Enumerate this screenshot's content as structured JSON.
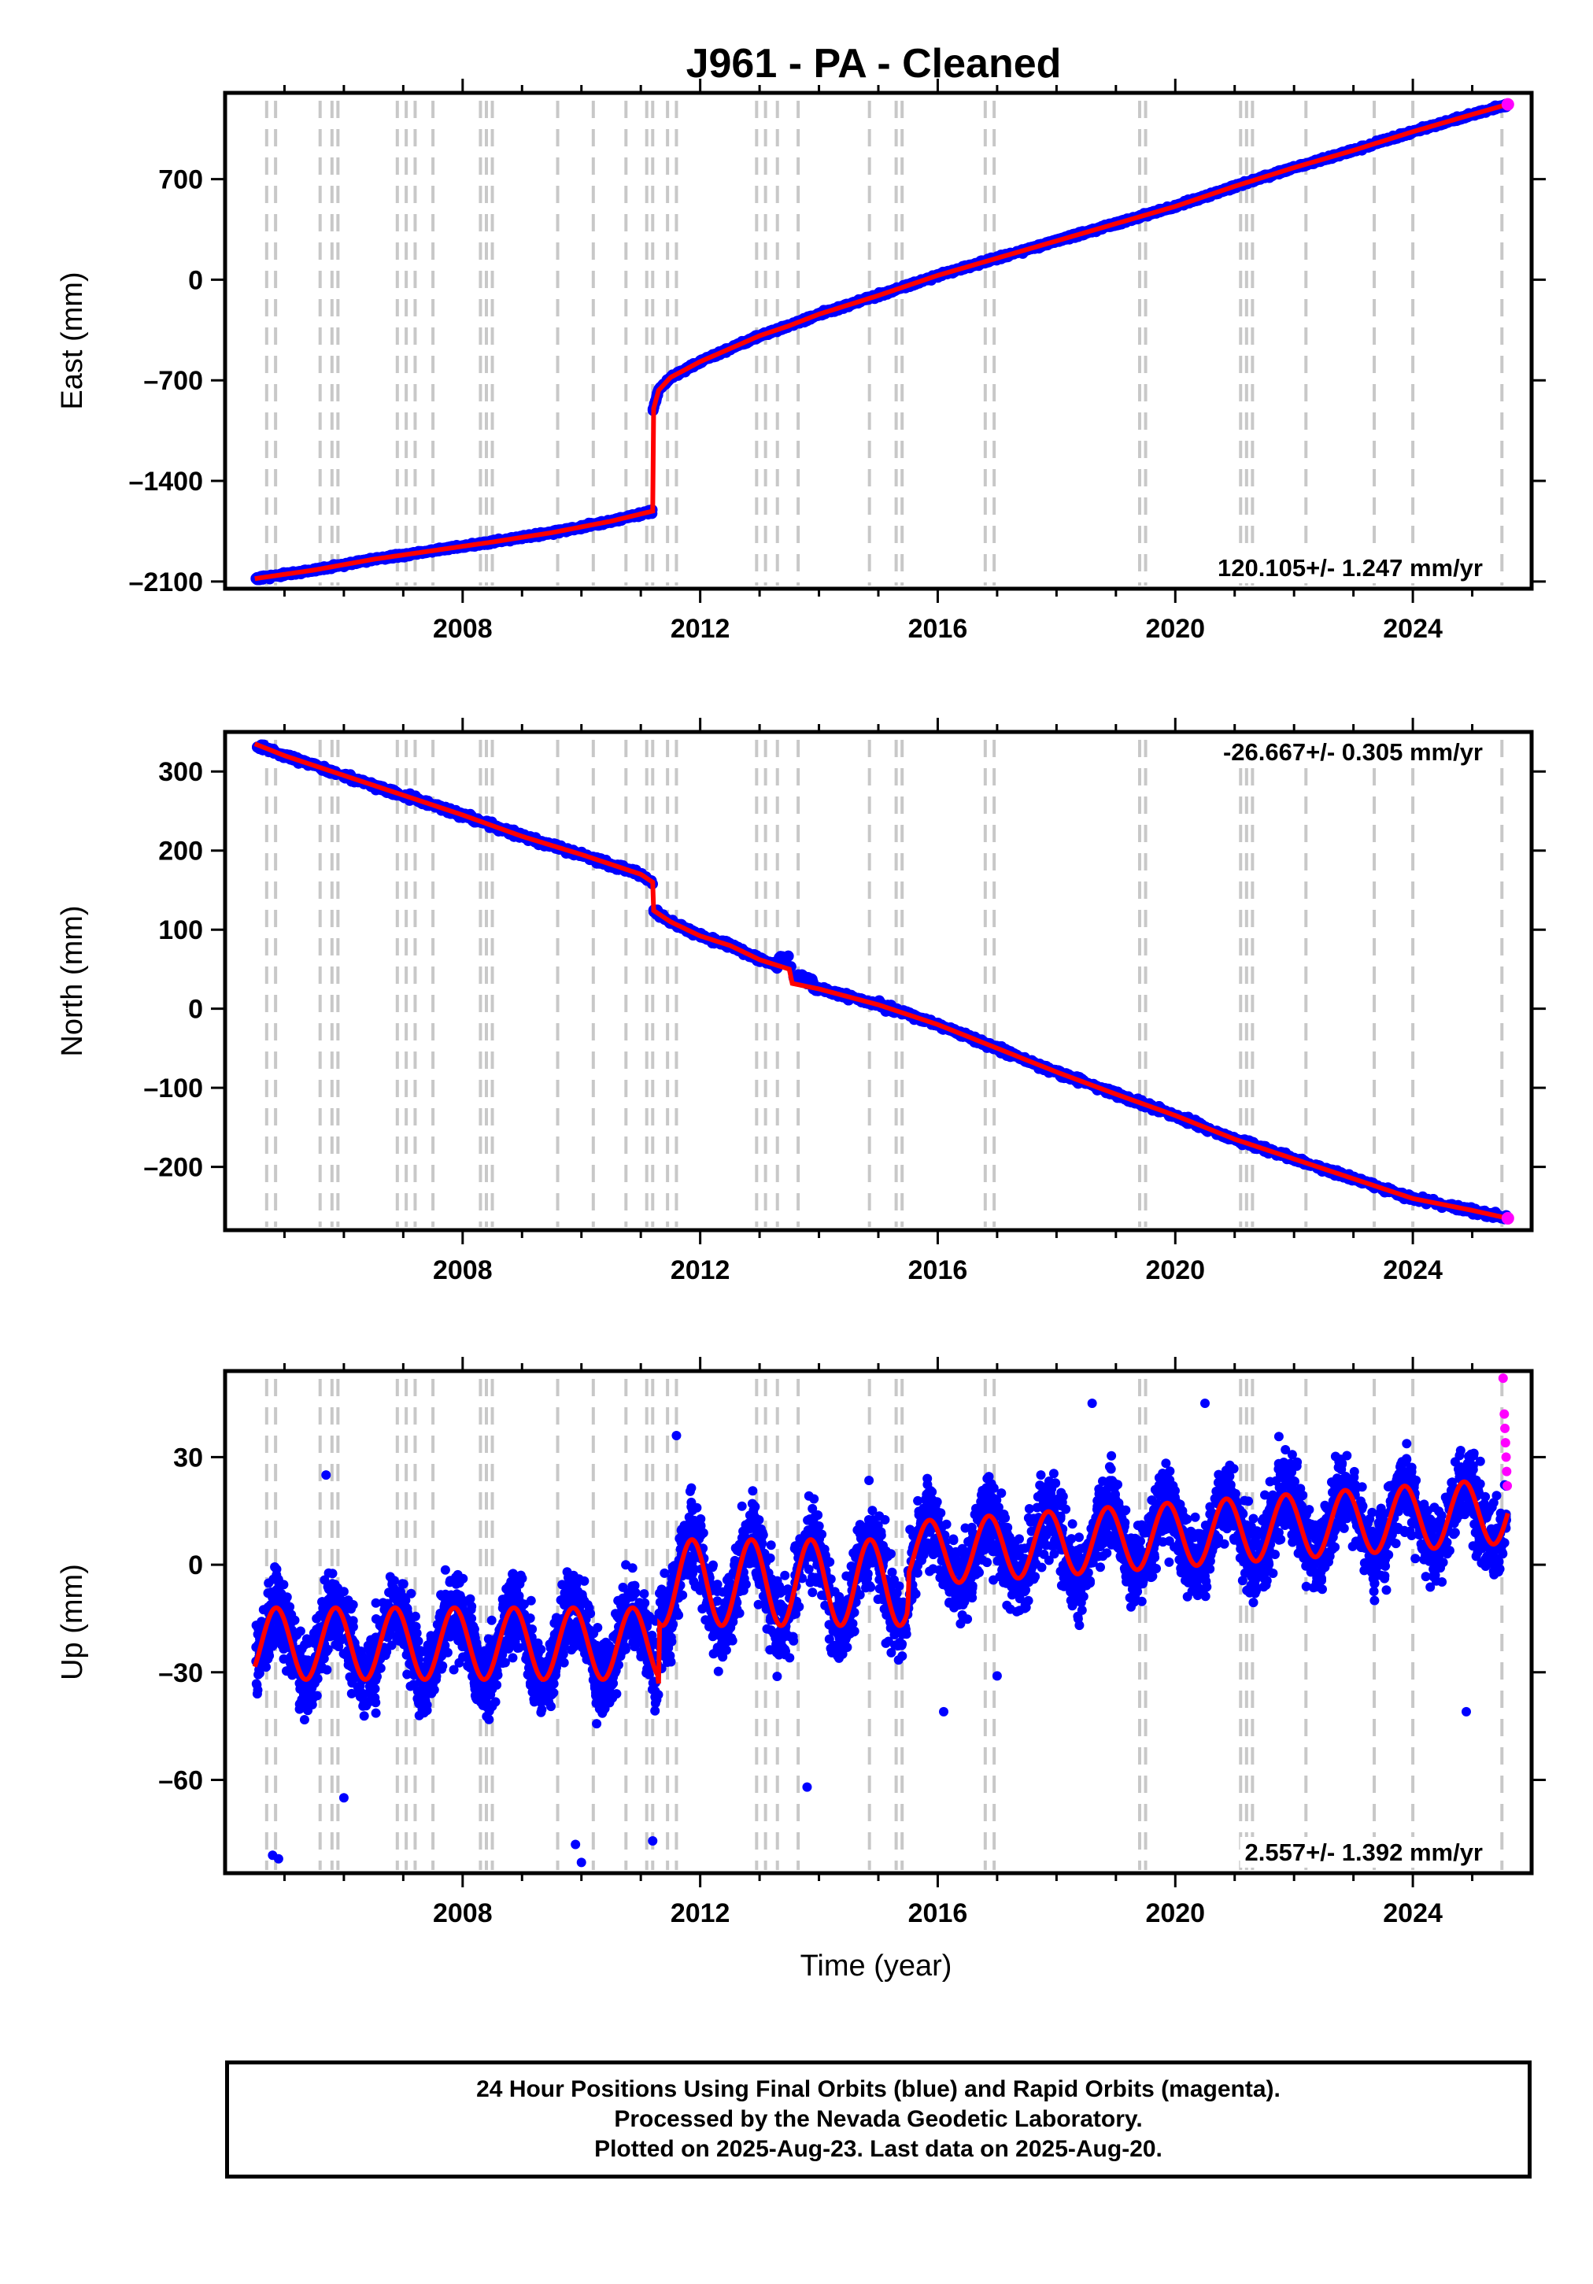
{
  "title": "J961  - PA - Cleaned",
  "xlabel": "Time (year)",
  "footer": {
    "line1": "24 Hour Positions Using Final Orbits (blue) and Rapid Orbits (magenta).",
    "line2": "Processed by the Nevada Geodetic Laboratory.",
    "line3": "Plotted on 2025-Aug-23. Last data on 2025-Aug-20."
  },
  "colors": {
    "final": "#0000ff",
    "rapid": "#ff00ff",
    "model": "#ff0000",
    "steps": "#c8c8c8"
  },
  "chart_data": [
    {
      "type": "scatter",
      "name": "east",
      "ylabel": "East (mm)",
      "rate": "120.105+/- 1.247 mm/yr",
      "xlim": [
        2004.0,
        2026.0
      ],
      "ylim": [
        -2150,
        1300
      ],
      "xticks": [
        2008,
        2012,
        2016,
        2020,
        2024
      ],
      "yticks": [
        -2100,
        -1400,
        -700,
        0,
        700
      ],
      "ytick_labels": [
        "–2100",
        "–1400",
        "–700",
        "0",
        "700"
      ],
      "series": [
        {
          "x": [
            2004.5,
            2005.5,
            2006.5,
            2007.5,
            2008.5,
            2009.5,
            2010.5,
            2011.2
          ],
          "y": [
            -2080,
            -2020,
            -1945,
            -1885,
            -1825,
            -1760,
            -1680,
            -1610
          ]
        },
        {
          "x": [
            2011.2,
            2011.3,
            2011.5,
            2012.0,
            2012.5,
            2013.0,
            2013.5,
            2014.0,
            2014.5,
            2015.0,
            2015.5,
            2016.0,
            2017.0,
            2018.0,
            2019.0,
            2020.0,
            2021.0,
            2022.0,
            2023.0,
            2024.0,
            2025.0,
            2025.6
          ],
          "y": [
            -920,
            -770,
            -680,
            -570,
            -480,
            -390,
            -320,
            -240,
            -175,
            -110,
            -40,
            30,
            150,
            270,
            390,
            510,
            650,
            780,
            900,
            1030,
            1150,
            1220
          ]
        }
      ]
    },
    {
      "type": "scatter",
      "name": "north",
      "ylabel": "North (mm)",
      "rate": "-26.667+/- 0.305 mm/yr",
      "xlim": [
        2004.0,
        2026.0
      ],
      "ylim": [
        -280,
        350
      ],
      "xticks": [
        2008,
        2012,
        2016,
        2020,
        2024
      ],
      "yticks": [
        -200,
        -100,
        0,
        100,
        200,
        300
      ],
      "ytick_labels": [
        "–200",
        "–100",
        "0",
        "100",
        "200",
        "300"
      ],
      "series": [
        {
          "x": [
            2004.5,
            2005.0,
            2006.0,
            2007.0,
            2008.0,
            2009.0,
            2010.0,
            2011.0,
            2011.2
          ],
          "y": [
            335,
            320,
            295,
            270,
            245,
            218,
            195,
            170,
            160
          ]
        },
        {
          "x": [
            2011.2,
            2011.5,
            2012.0,
            2012.5,
            2013.0,
            2013.5,
            2013.55,
            2014.0,
            2015.0,
            2016.0,
            2017.0,
            2018.0,
            2019.0,
            2020.0,
            2021.0,
            2022.0,
            2023.0,
            2024.0,
            2025.0,
            2025.6
          ],
          "y": [
            125,
            110,
            92,
            80,
            62,
            50,
            32,
            25,
            5,
            -20,
            -50,
            -80,
            -108,
            -135,
            -165,
            -190,
            -215,
            -240,
            -255,
            -265
          ]
        }
      ]
    },
    {
      "type": "scatter",
      "name": "up",
      "ylabel": "Up (mm)",
      "rate": "2.557+/- 1.392 mm/yr",
      "xlim": [
        2004.0,
        2026.0
      ],
      "ylim": [
        -86,
        54
      ],
      "xticks": [
        2008,
        2012,
        2016,
        2020,
        2024
      ],
      "yticks": [
        -60,
        -30,
        0,
        30
      ],
      "ytick_labels": [
        "–60",
        "–30",
        "0",
        "30"
      ],
      "series": [
        {
          "x": [
            2004.5,
            2011.3
          ],
          "y": [
            -22,
            -22
          ]
        },
        {
          "x": [
            2011.3,
            2015.5
          ],
          "y": [
            -5,
            -5
          ]
        },
        {
          "x": [
            2015.5,
            2025.6
          ],
          "y": [
            3,
            15
          ]
        }
      ],
      "rapid_points": [
        [
          2025.52,
          52
        ],
        [
          2025.54,
          42
        ],
        [
          2025.55,
          38
        ],
        [
          2025.56,
          34
        ],
        [
          2025.57,
          30
        ],
        [
          2025.58,
          26
        ],
        [
          2025.59,
          22
        ]
      ],
      "outliers": [
        [
          2004.9,
          -82
        ],
        [
          2004.8,
          -81
        ],
        [
          2005.7,
          25
        ],
        [
          2006.0,
          -65
        ],
        [
          2009.9,
          -78
        ],
        [
          2010.0,
          -83
        ],
        [
          2011.2,
          -77
        ],
        [
          2011.6,
          36
        ],
        [
          2013.8,
          -62
        ],
        [
          2018.6,
          45
        ],
        [
          2020.5,
          45
        ],
        [
          2017.0,
          -31
        ],
        [
          2016.1,
          -41
        ],
        [
          2024.9,
          -41
        ]
      ]
    }
  ],
  "step_dates": [
    2004.7,
    2004.85,
    2005.6,
    2005.8,
    2005.9,
    2006.9,
    2007.05,
    2007.2,
    2007.5,
    2008.3,
    2008.4,
    2008.5,
    2009.6,
    2010.2,
    2010.75,
    2011.1,
    2011.2,
    2011.45,
    2011.6,
    2012.95,
    2013.1,
    2013.3,
    2013.65,
    2014.85,
    2015.3,
    2015.4,
    2016.8,
    2016.95,
    2019.4,
    2019.5,
    2021.1,
    2021.2,
    2021.3,
    2022.2,
    2023.35,
    2024.0,
    2025.5
  ]
}
